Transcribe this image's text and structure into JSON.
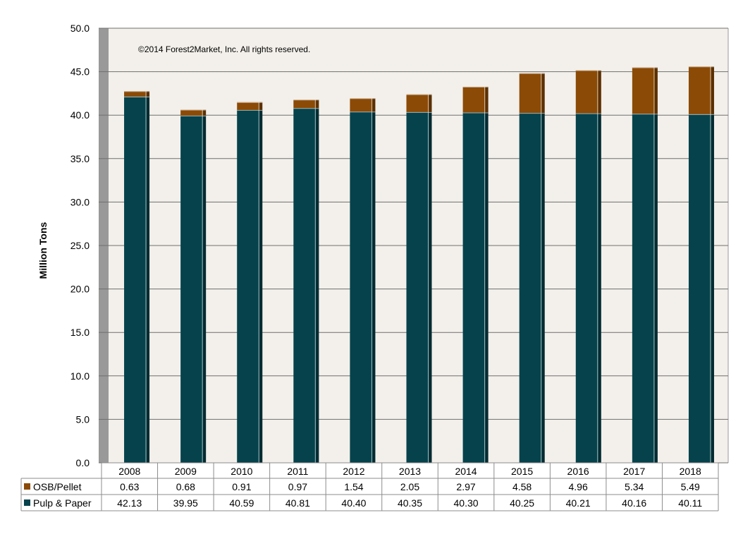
{
  "chart_data": {
    "type": "bar",
    "stacked": true,
    "title": "",
    "xlabel": "",
    "ylabel": "Million Tons",
    "annotation": "©2014 Forest2Market, Inc. All rights reserved.",
    "ylim": [
      0,
      50
    ],
    "yticks": [
      "0.0",
      "5.0",
      "10.0",
      "15.0",
      "20.0",
      "25.0",
      "30.0",
      "35.0",
      "40.0",
      "45.0",
      "50.0"
    ],
    "grid": true,
    "legend": "data-table",
    "categories": [
      "2008",
      "2009",
      "2010",
      "2011",
      "2012",
      "2013",
      "2014",
      "2015",
      "2016",
      "2017",
      "2018"
    ],
    "series": [
      {
        "name": "Pulp & Paper",
        "color": "#05424C",
        "values": [
          42.13,
          39.95,
          40.59,
          40.81,
          40.4,
          40.35,
          40.3,
          40.25,
          40.21,
          40.16,
          40.11
        ],
        "labels": [
          "42.13",
          "39.95",
          "40.59",
          "40.81",
          "40.40",
          "40.35",
          "40.30",
          "40.25",
          "40.21",
          "40.16",
          "40.11"
        ]
      },
      {
        "name": "OSB/Pellet",
        "color": "#8B4A06",
        "values": [
          0.63,
          0.68,
          0.91,
          0.97,
          1.54,
          2.05,
          2.97,
          4.58,
          4.96,
          5.34,
          5.49
        ],
        "labels": [
          "0.63",
          "0.68",
          "0.91",
          "0.97",
          "1.54",
          "2.05",
          "2.97",
          "4.58",
          "4.96",
          "5.34",
          "5.49"
        ]
      }
    ]
  },
  "colors": {
    "plot_background": "#F3F0EB",
    "axis_wall": "#999999",
    "gridline": "#6F6F6F"
  }
}
